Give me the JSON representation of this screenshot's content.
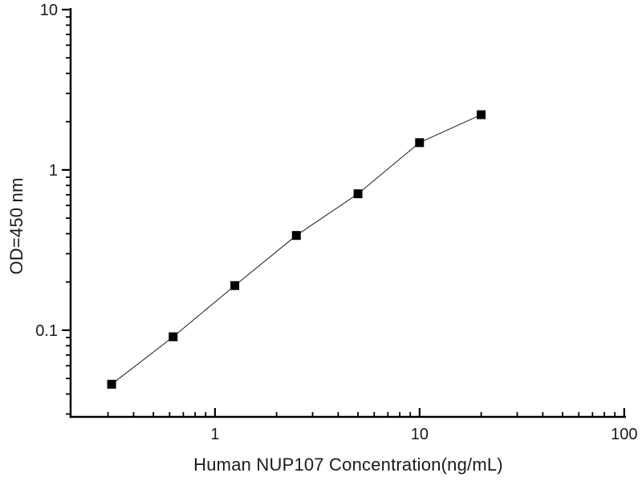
{
  "figure": {
    "background": "#ffffff",
    "axis_color": "#000000",
    "line_color": "#1a1a1a",
    "marker_color": "#000000"
  },
  "chart_data": {
    "type": "line",
    "title": "",
    "xlabel": "Human NUP107 Concentration(ng/mL)",
    "ylabel": "OD=450 nm",
    "x_scale": "log",
    "y_scale": "log",
    "x": [
      0.3125,
      0.625,
      1.25,
      2.5,
      5,
      10,
      20
    ],
    "y": [
      0.046,
      0.091,
      0.19,
      0.39,
      0.71,
      1.48,
      2.21
    ],
    "marker": "filled-square",
    "grid": false,
    "legend": null,
    "xlim": [
      0.197,
      102
    ],
    "ylim": [
      0.0288,
      10.23
    ],
    "x_major_ticks": [
      1,
      10,
      100
    ],
    "x_major_tick_labels": [
      "1",
      "10",
      "100"
    ],
    "x_minor_ticks": [
      0.3,
      0.4,
      0.5,
      0.6,
      0.7,
      0.8,
      0.9,
      2,
      3,
      4,
      5,
      6,
      7,
      8,
      9,
      20,
      30,
      40,
      50,
      60,
      70,
      80,
      90
    ],
    "y_major_ticks": [
      0.1,
      1,
      10
    ],
    "y_major_tick_labels": [
      "0.1",
      "1",
      "10"
    ],
    "y_minor_ticks": [
      0.03,
      0.04,
      0.05,
      0.06,
      0.07,
      0.08,
      0.09,
      0.2,
      0.3,
      0.4,
      0.5,
      0.6,
      0.7,
      0.8,
      0.9,
      2,
      3,
      4,
      5,
      6,
      7,
      8,
      9
    ]
  }
}
